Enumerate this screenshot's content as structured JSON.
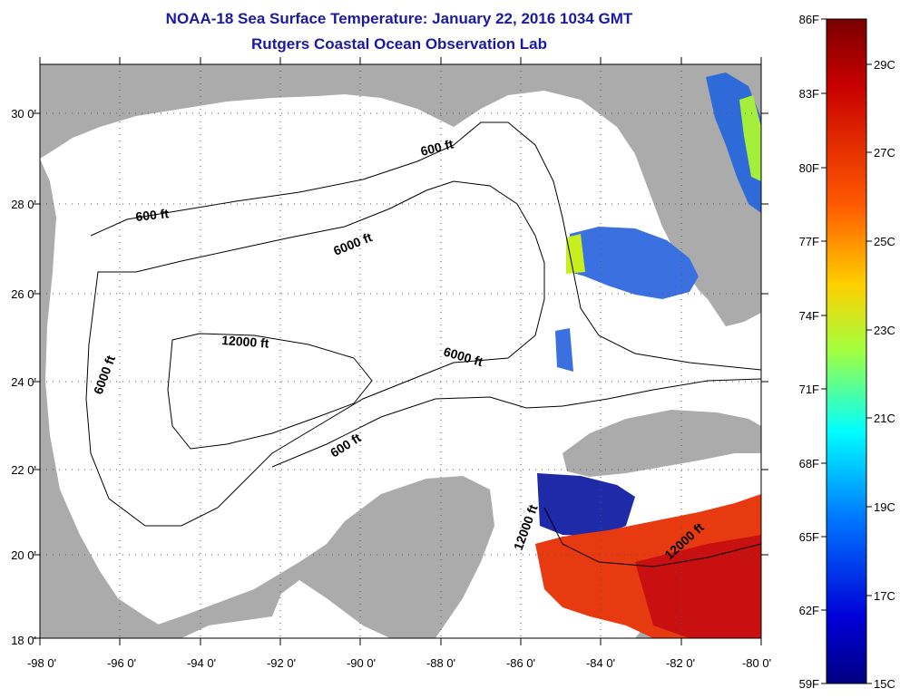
{
  "title_line1": "NOAA-18 Sea Surface Temperature:  January 22, 2016 1034 GMT",
  "title_line2": "Rutgers Coastal Ocean Observation Lab",
  "axes": {
    "lat_ticks": [
      "18 0'",
      "20 0'",
      "22 0'",
      "24 0'",
      "26 0'",
      "28 0'",
      "30 0'"
    ],
    "lon_ticks": [
      "-98 0'",
      "-96 0'",
      "-94 0'",
      "-92 0'",
      "-90 0'",
      "-88 0'",
      "-86 0'",
      "-84 0'",
      "-82 0'",
      "-80 0'"
    ],
    "lat_range": [
      18,
      31
    ],
    "lon_range": [
      -98,
      -80
    ]
  },
  "contour_labels": {
    "c600_north": "600 ft",
    "c600_northwest": "600 ft",
    "c600_south": "600 ft",
    "c6000_north": "6000 ft",
    "c6000_west": "6000 ft",
    "c6000_east": "6000 ft",
    "c12000_center": "12000 ft",
    "c12000_yucatan": "12000 ft",
    "c12000_caribbean": "12000 ft"
  },
  "colorbar": {
    "fahrenheit_labels": [
      "86F",
      "83F",
      "80F",
      "77F",
      "74F",
      "71F",
      "68F",
      "65F",
      "62F",
      "59F"
    ],
    "celsius_labels": [
      "29C",
      "27C",
      "25C",
      "23C",
      "21C",
      "19C",
      "17C",
      "15C"
    ]
  },
  "colors": {
    "land": "#ababab",
    "ocean": "#ffffff",
    "title": "#1a1aa0",
    "grid": "#555555"
  }
}
